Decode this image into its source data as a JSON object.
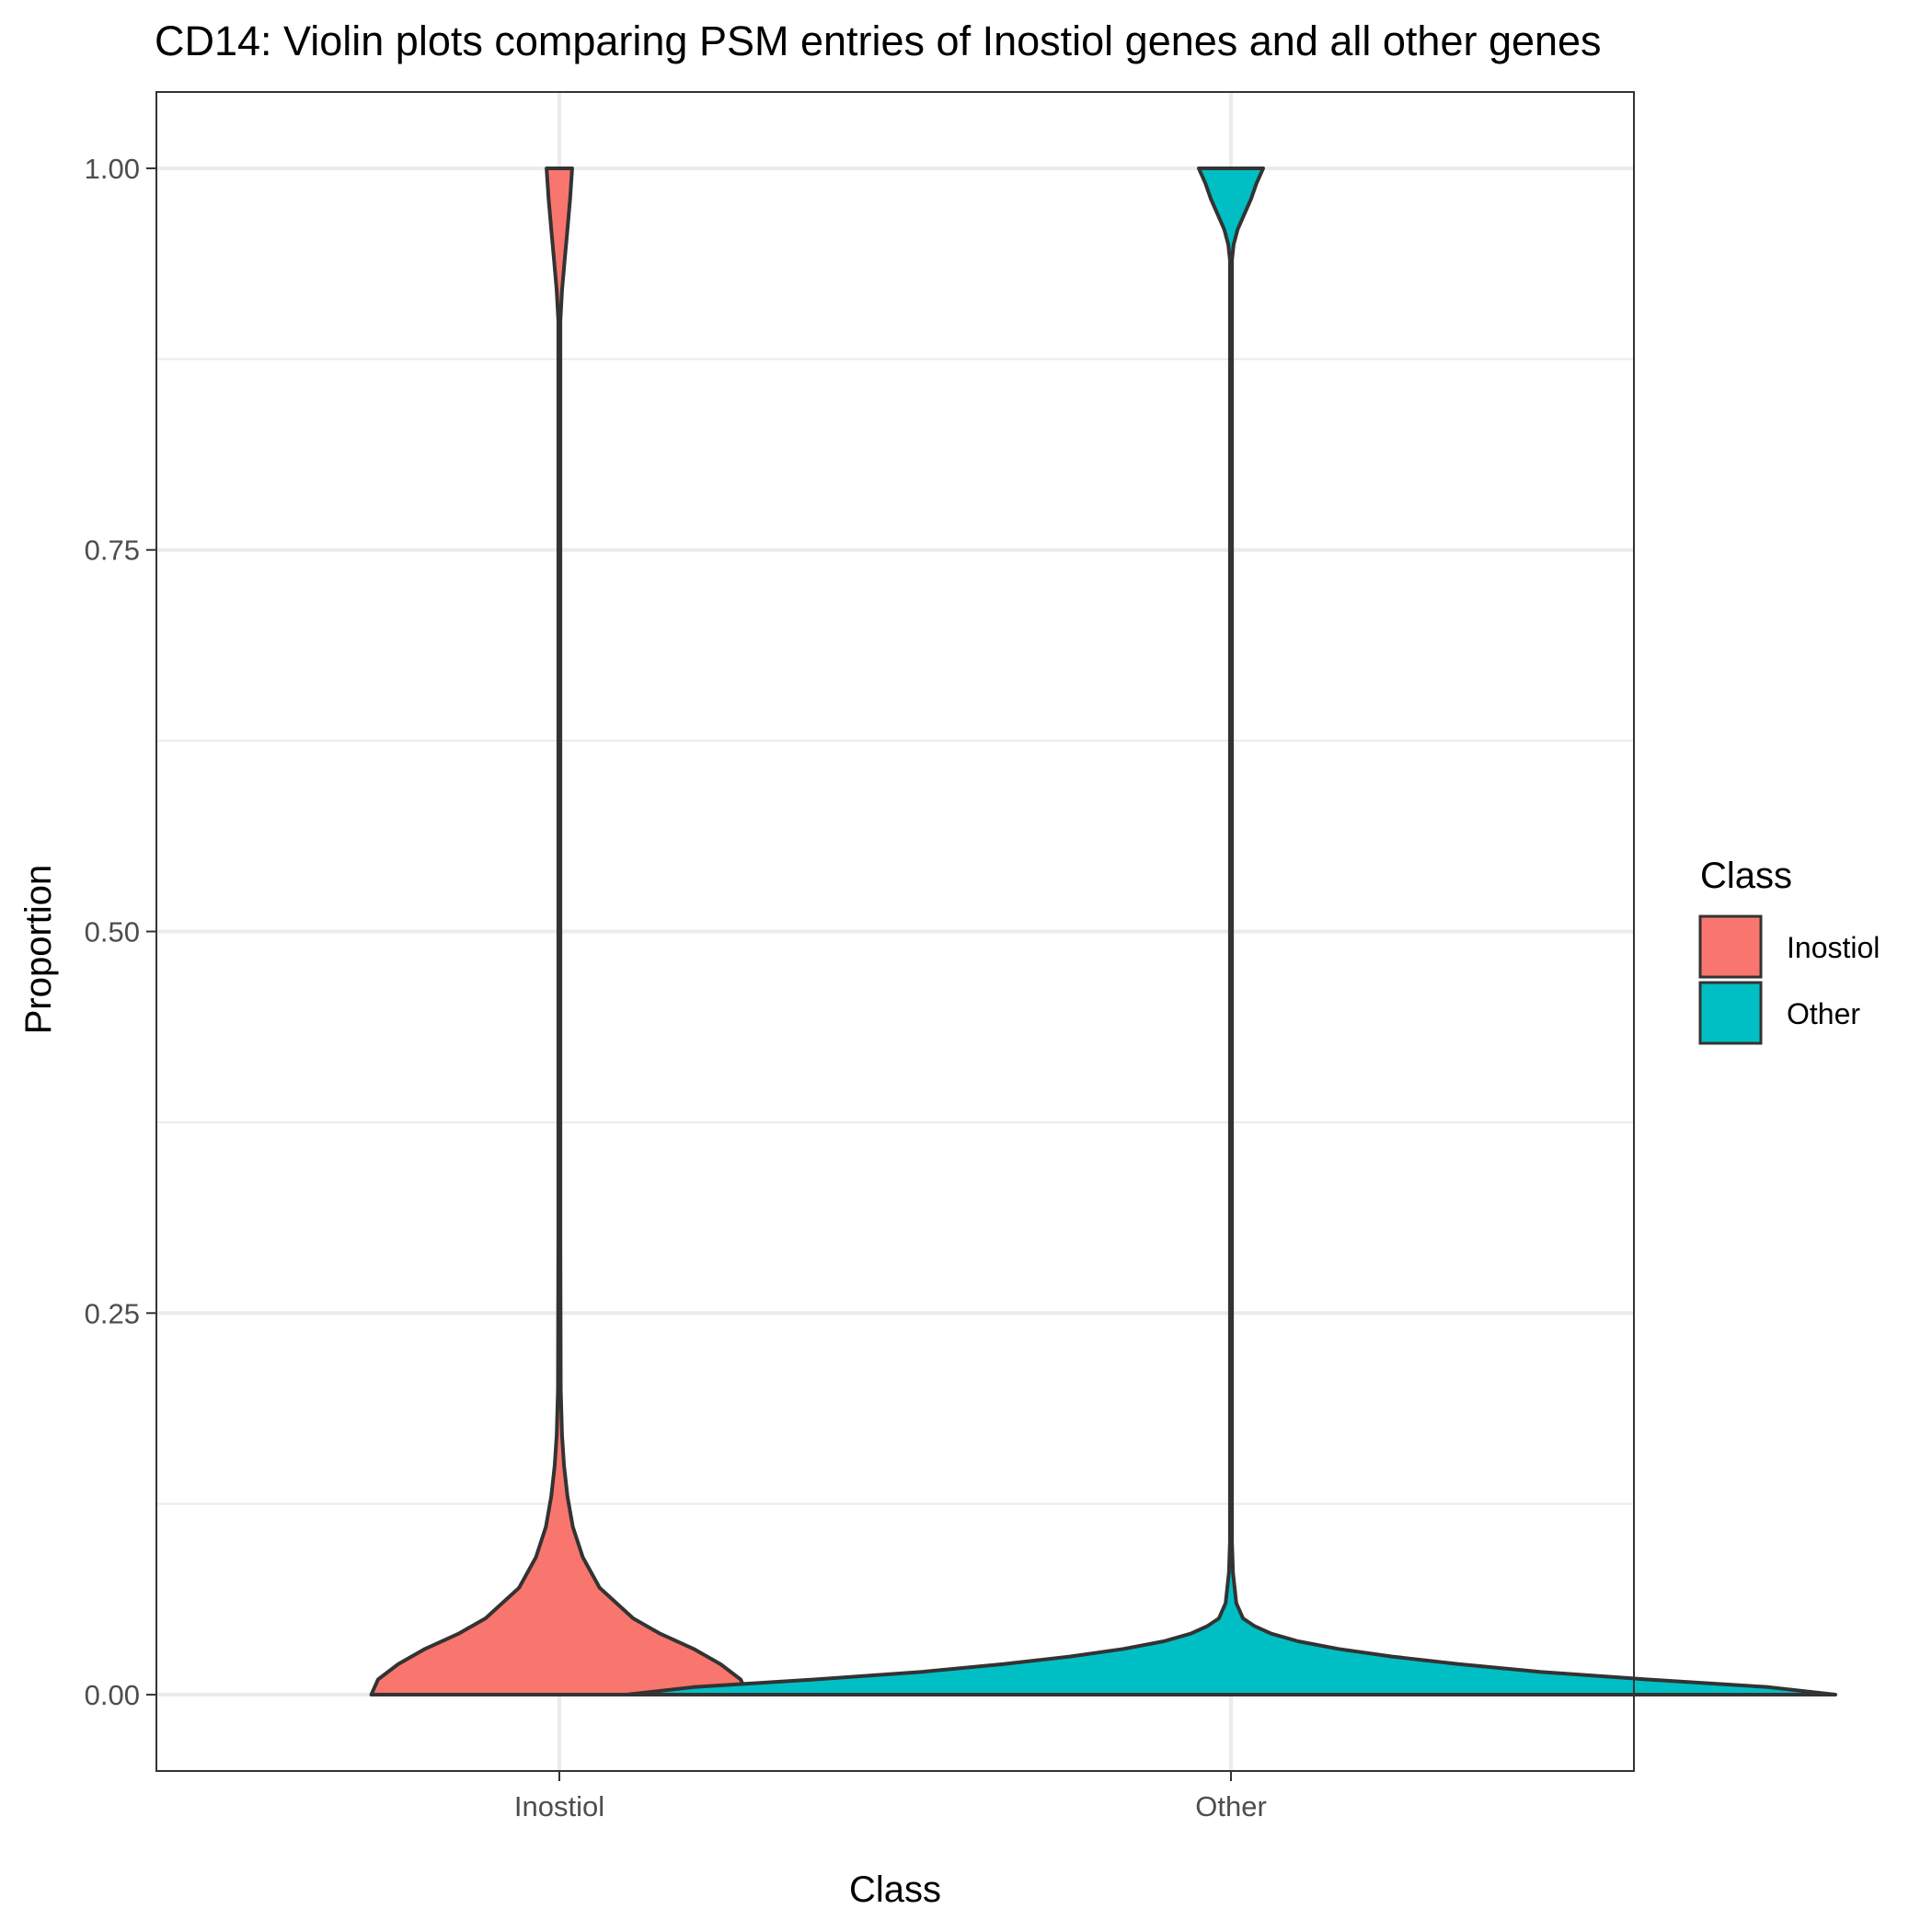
{
  "chart_data": {
    "type": "violin",
    "title": "CD14: Violin plots comparing PSM entries of Inostiol genes and all other genes",
    "xlabel": "Class",
    "ylabel": "Proportion",
    "categories": [
      "Inostiol",
      "Other"
    ],
    "ylim": [
      -0.05,
      1.05
    ],
    "yticks": [
      0.0,
      0.25,
      0.5,
      0.75,
      1.0
    ],
    "ytick_labels": [
      "0.00",
      "0.25",
      "0.50",
      "0.75",
      "1.00"
    ],
    "grid": true,
    "legend": {
      "title": "Class",
      "position": "right",
      "entries": [
        {
          "label": "Inostiol",
          "color": "#F8766D"
        },
        {
          "label": "Other",
          "color": "#00BFC4"
        }
      ]
    },
    "series": [
      {
        "category": "Inostiol",
        "color": "#F8766D",
        "density": [
          {
            "y": 0.0,
            "w": 0.28
          },
          {
            "y": 0.01,
            "w": 0.27
          },
          {
            "y": 0.02,
            "w": 0.24
          },
          {
            "y": 0.03,
            "w": 0.2
          },
          {
            "y": 0.04,
            "w": 0.15
          },
          {
            "y": 0.05,
            "w": 0.11
          },
          {
            "y": 0.07,
            "w": 0.06
          },
          {
            "y": 0.09,
            "w": 0.035
          },
          {
            "y": 0.11,
            "w": 0.02
          },
          {
            "y": 0.13,
            "w": 0.012
          },
          {
            "y": 0.15,
            "w": 0.007
          },
          {
            "y": 0.17,
            "w": 0.004
          },
          {
            "y": 0.2,
            "w": 0.002
          },
          {
            "y": 0.3,
            "w": 0.0015
          },
          {
            "y": 0.6,
            "w": 0.0015
          },
          {
            "y": 0.9,
            "w": 0.0015
          },
          {
            "y": 0.92,
            "w": 0.004
          },
          {
            "y": 0.94,
            "w": 0.008
          },
          {
            "y": 0.96,
            "w": 0.012
          },
          {
            "y": 0.98,
            "w": 0.016
          },
          {
            "y": 1.0,
            "w": 0.019
          }
        ]
      },
      {
        "category": "Other",
        "color": "#00BFC4",
        "density": [
          {
            "y": 0.0,
            "w": 0.9
          },
          {
            "y": 0.005,
            "w": 0.8
          },
          {
            "y": 0.01,
            "w": 0.62
          },
          {
            "y": 0.015,
            "w": 0.46
          },
          {
            "y": 0.02,
            "w": 0.34
          },
          {
            "y": 0.025,
            "w": 0.24
          },
          {
            "y": 0.03,
            "w": 0.16
          },
          {
            "y": 0.035,
            "w": 0.1
          },
          {
            "y": 0.04,
            "w": 0.06
          },
          {
            "y": 0.045,
            "w": 0.035
          },
          {
            "y": 0.05,
            "w": 0.018
          },
          {
            "y": 0.06,
            "w": 0.008
          },
          {
            "y": 0.08,
            "w": 0.003
          },
          {
            "y": 0.1,
            "w": 0.0015
          },
          {
            "y": 0.5,
            "w": 0.0015
          },
          {
            "y": 0.94,
            "w": 0.0015
          },
          {
            "y": 0.95,
            "w": 0.004
          },
          {
            "y": 0.96,
            "w": 0.01
          },
          {
            "y": 0.97,
            "w": 0.02
          },
          {
            "y": 0.98,
            "w": 0.03
          },
          {
            "y": 0.99,
            "w": 0.038
          },
          {
            "y": 1.0,
            "w": 0.048
          }
        ]
      }
    ]
  }
}
